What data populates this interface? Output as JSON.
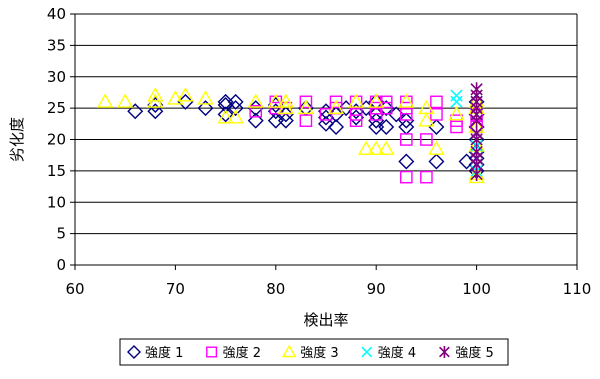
{
  "chart_data": {
    "type": "scatter",
    "xlabel": "検出率",
    "ylabel": "劣化度",
    "xlim": [
      60,
      110
    ],
    "ylim": [
      0,
      40
    ],
    "xticks": [
      "60",
      "70",
      "80",
      "90",
      "100",
      "110"
    ],
    "yticks": [
      "0",
      "5",
      "10",
      "15",
      "20",
      "25",
      "30",
      "35",
      "40"
    ],
    "grid": "horizontal",
    "legend_position": "bottom",
    "series": [
      {
        "name": "強度 1",
        "marker": "diamond",
        "color": "#000080",
        "points": [
          [
            66,
            24.5
          ],
          [
            68,
            24.5
          ],
          [
            68,
            25.5
          ],
          [
            71,
            26
          ],
          [
            73,
            25
          ],
          [
            75,
            24
          ],
          [
            75,
            25.5
          ],
          [
            75,
            26
          ],
          [
            76,
            25
          ],
          [
            76,
            26
          ],
          [
            78,
            23
          ],
          [
            78,
            25
          ],
          [
            80,
            23
          ],
          [
            80,
            24.5
          ],
          [
            80,
            25.5
          ],
          [
            81,
            24
          ],
          [
            81,
            23
          ],
          [
            83,
            25
          ],
          [
            85,
            22.5
          ],
          [
            85,
            23.5
          ],
          [
            85,
            24.5
          ],
          [
            86,
            22
          ],
          [
            86,
            24
          ],
          [
            87,
            25
          ],
          [
            88,
            23.5
          ],
          [
            88,
            24.5
          ],
          [
            89,
            25
          ],
          [
            90,
            22
          ],
          [
            90,
            23
          ],
          [
            90,
            24
          ],
          [
            90,
            26
          ],
          [
            91,
            22
          ],
          [
            91,
            25
          ],
          [
            92,
            24
          ],
          [
            93,
            22
          ],
          [
            93,
            23
          ],
          [
            93,
            16.5
          ],
          [
            96,
            16.5
          ],
          [
            96,
            22
          ],
          [
            99,
            16.5
          ],
          [
            100,
            15
          ],
          [
            100,
            16
          ],
          [
            100,
            17
          ],
          [
            100,
            18
          ],
          [
            100,
            20
          ],
          [
            100,
            22
          ],
          [
            100,
            24
          ],
          [
            100,
            26
          ]
        ]
      },
      {
        "name": "強度 2",
        "marker": "square",
        "color": "#ff00ff",
        "points": [
          [
            78,
            24.5
          ],
          [
            80,
            25
          ],
          [
            80,
            26
          ],
          [
            81,
            25
          ],
          [
            83,
            23
          ],
          [
            83,
            26
          ],
          [
            85,
            24
          ],
          [
            86,
            25
          ],
          [
            86,
            26
          ],
          [
            88,
            23
          ],
          [
            88,
            24
          ],
          [
            88,
            26
          ],
          [
            90,
            24
          ],
          [
            90,
            25
          ],
          [
            90,
            26
          ],
          [
            91,
            25
          ],
          [
            91,
            26
          ],
          [
            93,
            14
          ],
          [
            93,
            20
          ],
          [
            93,
            24
          ],
          [
            93,
            25
          ],
          [
            93,
            26
          ],
          [
            95,
            14
          ],
          [
            95,
            20
          ],
          [
            96,
            24
          ],
          [
            96,
            26
          ],
          [
            98,
            22
          ],
          [
            98,
            23
          ],
          [
            100,
            22
          ],
          [
            100,
            24
          ]
        ]
      },
      {
        "name": "強度 3",
        "marker": "triangle",
        "color": "#ffff00",
        "points": [
          [
            63,
            26
          ],
          [
            65,
            26
          ],
          [
            68,
            26
          ],
          [
            68,
            27
          ],
          [
            70,
            26.5
          ],
          [
            71,
            27
          ],
          [
            73,
            26.5
          ],
          [
            75,
            23.5
          ],
          [
            76,
            23.5
          ],
          [
            78,
            26
          ],
          [
            80,
            26
          ],
          [
            81,
            25
          ],
          [
            81,
            26
          ],
          [
            83,
            25
          ],
          [
            86,
            25
          ],
          [
            88,
            26
          ],
          [
            89,
            18.5
          ],
          [
            90,
            18.5
          ],
          [
            91,
            18.5
          ],
          [
            90,
            26
          ],
          [
            93,
            26
          ],
          [
            95,
            23
          ],
          [
            96,
            18.5
          ],
          [
            95,
            25
          ],
          [
            98,
            24
          ],
          [
            100,
            14
          ],
          [
            100,
            14.5
          ],
          [
            100,
            19
          ],
          [
            100,
            22
          ],
          [
            100,
            25
          ],
          [
            100,
            26
          ]
        ]
      },
      {
        "name": "強度 4",
        "marker": "x",
        "color": "#00ffff",
        "points": [
          [
            98,
            26
          ],
          [
            98,
            27
          ],
          [
            100,
            15
          ],
          [
            100,
            17
          ],
          [
            100,
            19
          ],
          [
            100,
            21
          ],
          [
            100,
            24
          ],
          [
            100,
            26
          ]
        ]
      },
      {
        "name": "強度 5",
        "marker": "asterisk",
        "color": "#800080",
        "points": [
          [
            100,
            14.5
          ],
          [
            100,
            16
          ],
          [
            100,
            17
          ],
          [
            100,
            18
          ],
          [
            100,
            20
          ],
          [
            100,
            21
          ],
          [
            100,
            23
          ],
          [
            100,
            24
          ],
          [
            100,
            25
          ],
          [
            100,
            26
          ],
          [
            100,
            27
          ],
          [
            100,
            28
          ]
        ]
      }
    ]
  }
}
